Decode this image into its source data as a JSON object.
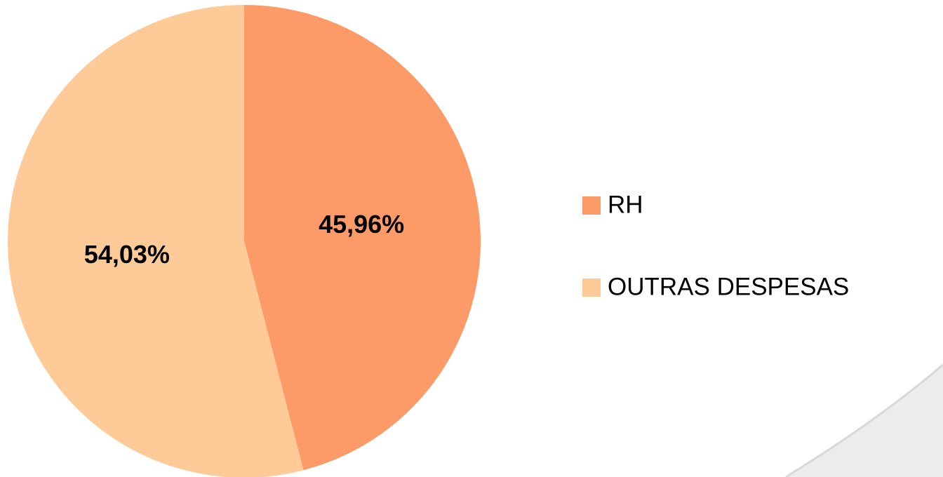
{
  "chart_data": {
    "type": "pie",
    "categories": [
      "RH",
      "OUTRAS DESPESAS"
    ],
    "values": [
      45.96,
      54.03
    ],
    "value_labels": [
      "45,96%",
      "54,03%"
    ],
    "colors": [
      "#fd9b68",
      "#fdca98"
    ],
    "legend": "right"
  }
}
